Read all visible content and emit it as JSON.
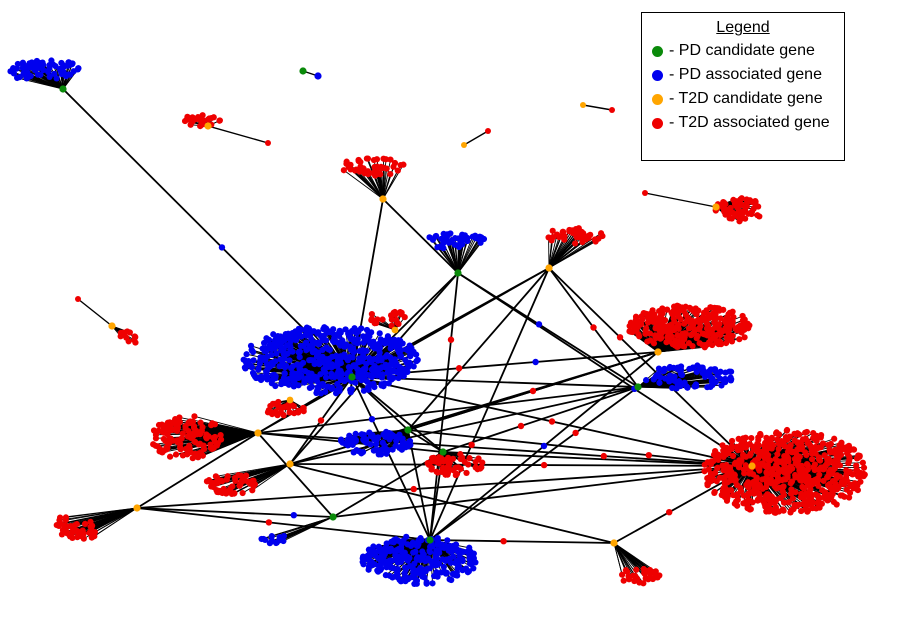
{
  "legend": {
    "title": "Legend",
    "items": [
      {
        "label": "- PD candidate gene",
        "color": "#0a8a0a"
      },
      {
        "label": "- PD associated gene",
        "color": "#0000ee"
      },
      {
        "label": "- T2D candidate gene",
        "color": "#ffa500"
      },
      {
        "label": "- T2D associated gene",
        "color": "#ee0000"
      }
    ]
  },
  "colors": {
    "edge": "#000000"
  }
}
